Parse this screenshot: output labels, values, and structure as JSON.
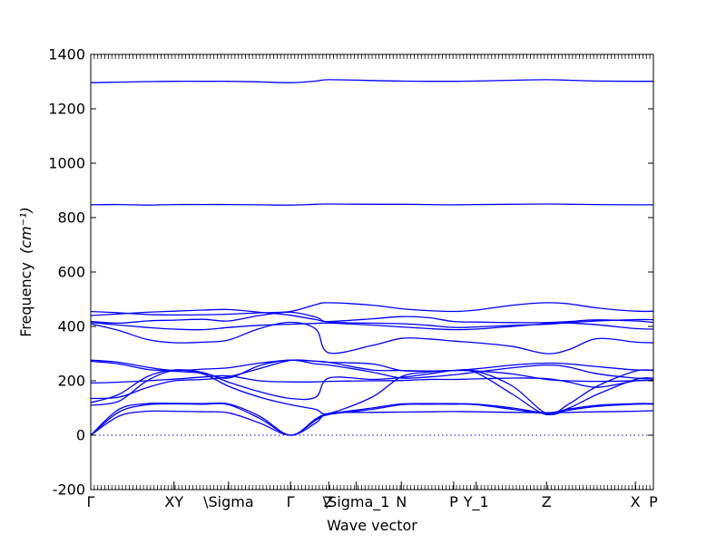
{
  "chart_data": {
    "type": "line",
    "title": "",
    "xlabel": "Wave vector",
    "ylabel": "Frequency",
    "ylabel_unit": "(cm⁻¹)",
    "ylim": [
      -200,
      1400
    ],
    "yticks": [
      -200,
      0,
      200,
      400,
      600,
      800,
      1000,
      1200,
      1400
    ],
    "xlim": [
      0,
      1
    ],
    "x_ticks": [
      {
        "label": "Γ",
        "x": 0.0
      },
      {
        "label": "XY",
        "x": 0.148
      },
      {
        "label": "\\Sigma",
        "x": 0.245
      },
      {
        "label": "Γ",
        "x": 0.355
      },
      {
        "label": "Z",
        "x": 0.423
      },
      {
        "label": "\\Sigma_1",
        "x": 0.472
      },
      {
        "label": "N",
        "x": 0.552
      },
      {
        "label": "P",
        "x": 0.645
      },
      {
        "label": "Y_1",
        "x": 0.685
      },
      {
        "label": "Z",
        "x": 0.81
      },
      {
        "label": "X",
        "x": 0.968
      },
      {
        "label": "P",
        "x": 1.0
      }
    ],
    "color": "#0000ff",
    "zero_line": true,
    "series": [
      {
        "x": [
          0,
          0.05,
          0.1,
          0.148,
          0.2,
          0.245,
          0.3,
          0.355,
          0.4,
          0.423,
          0.5,
          0.552,
          0.6,
          0.645,
          0.685,
          0.75,
          0.81,
          0.85,
          0.9,
          0.968,
          1.0
        ],
        "values": [
          1296,
          1298,
          1300,
          1301,
          1301,
          1301,
          1299,
          1296,
          1302,
          1307,
          1304,
          1302,
          1301,
          1301,
          1302,
          1305,
          1307,
          1305,
          1302,
          1301,
          1301
        ]
      },
      {
        "x": [
          0,
          0.05,
          0.1,
          0.148,
          0.2,
          0.245,
          0.3,
          0.355,
          0.4,
          0.423,
          0.5,
          0.552,
          0.6,
          0.645,
          0.685,
          0.75,
          0.81,
          0.85,
          0.9,
          0.968,
          1.0
        ],
        "values": [
          847,
          848,
          846,
          848,
          848,
          848,
          847,
          846,
          849,
          850,
          849,
          849,
          848,
          847,
          848,
          849,
          850,
          849,
          848,
          847,
          847
        ]
      },
      {
        "x": [
          0,
          0.05,
          0.1,
          0.148,
          0.2,
          0.245,
          0.3,
          0.355,
          0.4,
          0.423,
          0.5,
          0.552,
          0.6,
          0.645,
          0.685,
          0.75,
          0.81,
          0.85,
          0.9,
          0.968,
          1.0
        ],
        "values": [
          455,
          450,
          444,
          442,
          443,
          445,
          450,
          455,
          480,
          487,
          478,
          465,
          458,
          455,
          460,
          478,
          487,
          483,
          468,
          456,
          456
        ]
      },
      {
        "x": [
          0,
          0.05,
          0.1,
          0.148,
          0.2,
          0.245,
          0.3,
          0.355,
          0.4,
          0.423,
          0.5,
          0.552,
          0.6,
          0.645,
          0.685,
          0.75,
          0.81,
          0.85,
          0.9,
          0.968,
          1.0
        ],
        "values": [
          440,
          446,
          452,
          456,
          460,
          462,
          452,
          441,
          425,
          418,
          428,
          436,
          432,
          418,
          416,
          414,
          414,
          418,
          424,
          420,
          415
        ]
      },
      {
        "x": [
          0,
          0.05,
          0.1,
          0.148,
          0.2,
          0.245,
          0.3,
          0.355,
          0.4,
          0.423,
          0.5,
          0.552,
          0.6,
          0.645,
          0.685,
          0.75,
          0.81,
          0.85,
          0.9,
          0.968,
          1.0
        ],
        "values": [
          418,
          412,
          420,
          423,
          426,
          420,
          440,
          452,
          434,
          416,
          412,
          410,
          404,
          396,
          398,
          404,
          408,
          414,
          420,
          425,
          425
        ]
      },
      {
        "x": [
          0,
          0.05,
          0.1,
          0.148,
          0.2,
          0.245,
          0.3,
          0.355,
          0.4,
          0.423,
          0.5,
          0.552,
          0.6,
          0.645,
          0.685,
          0.75,
          0.81,
          0.85,
          0.9,
          0.968,
          1.0
        ],
        "values": [
          415,
          405,
          396,
          390,
          388,
          396,
          404,
          408,
          411,
          412,
          405,
          398,
          392,
          388,
          390,
          400,
          410,
          412,
          406,
          392,
          390
        ]
      },
      {
        "x": [
          0,
          0.05,
          0.1,
          0.148,
          0.2,
          0.245,
          0.3,
          0.355,
          0.4,
          0.423,
          0.5,
          0.552,
          0.6,
          0.645,
          0.685,
          0.75,
          0.81,
          0.85,
          0.9,
          0.968,
          1.0
        ],
        "values": [
          410,
          385,
          352,
          340,
          342,
          350,
          392,
          415,
          390,
          303,
          330,
          356,
          354,
          346,
          340,
          326,
          300,
          315,
          355,
          342,
          340
        ]
      },
      {
        "x": [
          0,
          0.05,
          0.1,
          0.148,
          0.2,
          0.245,
          0.3,
          0.355,
          0.4,
          0.423,
          0.5,
          0.552,
          0.6,
          0.645,
          0.685,
          0.75,
          0.81,
          0.85,
          0.9,
          0.968,
          1.0
        ],
        "values": [
          276,
          268,
          250,
          238,
          243,
          248,
          265,
          276,
          272,
          268,
          262,
          238,
          236,
          238,
          244,
          258,
          265,
          262,
          252,
          240,
          240
        ]
      },
      {
        "x": [
          0,
          0.05,
          0.1,
          0.148,
          0.2,
          0.245,
          0.3,
          0.355,
          0.4,
          0.423,
          0.5,
          0.552,
          0.6,
          0.645,
          0.685,
          0.75,
          0.81,
          0.85,
          0.9,
          0.968,
          1.0
        ],
        "values": [
          272,
          262,
          242,
          235,
          228,
          210,
          256,
          276,
          262,
          258,
          232,
          210,
          214,
          222,
          232,
          248,
          258,
          250,
          226,
          210,
          210
        ]
      },
      {
        "x": [
          0,
          0.05,
          0.1,
          0.148,
          0.2,
          0.245,
          0.3,
          0.355,
          0.4,
          0.423,
          0.5,
          0.552,
          0.6,
          0.645,
          0.685,
          0.75,
          0.81,
          0.85,
          0.9,
          0.968,
          1.0
        ],
        "values": [
          192,
          195,
          200,
          206,
          214,
          218,
          200,
          196,
          196,
          198,
          200,
          201,
          205,
          205,
          207,
          210,
          208,
          195,
          176,
          200,
          204
        ]
      },
      {
        "x": [
          0,
          0.05,
          0.1,
          0.148,
          0.2,
          0.245,
          0.3,
          0.355,
          0.4,
          0.423,
          0.5,
          0.552,
          0.6,
          0.645,
          0.685,
          0.75,
          0.81,
          0.85,
          0.9,
          0.968,
          1.0
        ],
        "values": [
          135,
          140,
          175,
          200,
          205,
          215,
          245,
          275,
          272,
          268,
          240,
          238,
          236,
          238,
          236,
          225,
          205,
          200,
          198,
          200,
          202
        ]
      },
      {
        "x": [
          0,
          0.05,
          0.1,
          0.148,
          0.2,
          0.245,
          0.3,
          0.355,
          0.4,
          0.423,
          0.5,
          0.552,
          0.6,
          0.645,
          0.685,
          0.75,
          0.81,
          0.85,
          0.9,
          0.968,
          1.0
        ],
        "values": [
          120,
          150,
          215,
          240,
          230,
          195,
          160,
          135,
          140,
          210,
          205,
          212,
          225,
          238,
          236,
          180,
          80,
          100,
          150,
          205,
          210
        ]
      },
      {
        "x": [
          0,
          0.05,
          0.1,
          0.148,
          0.2,
          0.245,
          0.3,
          0.355,
          0.4,
          0.423,
          0.5,
          0.552,
          0.6,
          0.645,
          0.685,
          0.75,
          0.81,
          0.85,
          0.9,
          0.968,
          1.0
        ],
        "values": [
          110,
          125,
          200,
          238,
          225,
          180,
          140,
          112,
          95,
          80,
          140,
          215,
          232,
          238,
          230,
          150,
          76,
          115,
          180,
          236,
          238
        ]
      },
      {
        "x": [
          0,
          0.05,
          0.1,
          0.148,
          0.2,
          0.245,
          0.3,
          0.355,
          0.4,
          0.423,
          0.5,
          0.552,
          0.6,
          0.645,
          0.685,
          0.75,
          0.81,
          0.85,
          0.9,
          0.968,
          1.0
        ],
        "values": [
          0,
          95,
          116,
          117,
          116,
          115,
          70,
          0,
          60,
          78,
          100,
          115,
          116,
          116,
          114,
          100,
          82,
          96,
          110,
          116,
          116
        ]
      },
      {
        "x": [
          0,
          0.05,
          0.1,
          0.148,
          0.2,
          0.245,
          0.3,
          0.355,
          0.4,
          0.423,
          0.5,
          0.552,
          0.6,
          0.645,
          0.685,
          0.75,
          0.81,
          0.85,
          0.9,
          0.968,
          1.0
        ],
        "values": [
          0,
          85,
          112,
          115,
          114,
          112,
          62,
          0,
          55,
          76,
          95,
          112,
          114,
          114,
          112,
          95,
          80,
          92,
          106,
          114,
          114
        ]
      },
      {
        "x": [
          0,
          0.05,
          0.1,
          0.148,
          0.2,
          0.245,
          0.3,
          0.355,
          0.4,
          0.423,
          0.5,
          0.552,
          0.6,
          0.645,
          0.685,
          0.75,
          0.81,
          0.85,
          0.9,
          0.968,
          1.0
        ],
        "values": [
          0,
          70,
          88,
          88,
          86,
          82,
          45,
          0,
          45,
          80,
          84,
          85,
          86,
          87,
          86,
          84,
          83,
          84,
          86,
          88,
          90
        ]
      }
    ]
  }
}
